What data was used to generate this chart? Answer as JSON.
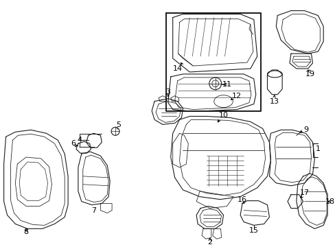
{
  "bg_color": "#ffffff",
  "line_color": "#1a1a1a",
  "lw": 0.8,
  "fig_w": 4.89,
  "fig_h": 3.6,
  "dpi": 100
}
